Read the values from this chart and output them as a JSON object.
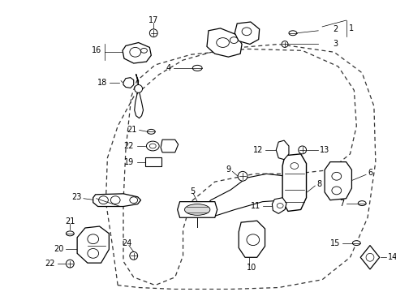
{
  "background_color": "#ffffff",
  "fig_width": 4.89,
  "fig_height": 3.6,
  "dpi": 100,
  "fs": 7.0
}
